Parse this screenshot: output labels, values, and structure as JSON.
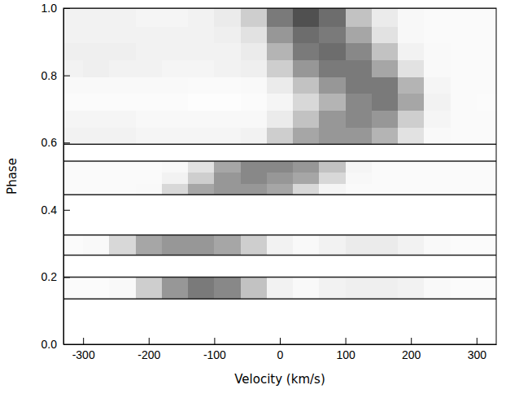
{
  "chart_data": {
    "type": "heatmap",
    "x_label": "Velocity (km/s)",
    "y_label": "Phase",
    "xlim": [
      -330,
      330
    ],
    "ylim": [
      0,
      1
    ],
    "xticks": [
      -300,
      -200,
      -100,
      0,
      100,
      200,
      300
    ],
    "yticks": [
      {
        "value": 0,
        "label": "0.0"
      },
      0.2,
      0.4,
      0.6,
      0.8,
      {
        "value": 1,
        "label": "1.0"
      }
    ],
    "zlim": [
      0,
      1
    ],
    "x_bins": [
      -340,
      -300,
      -260,
      -220,
      -180,
      -140,
      -100,
      -60,
      -20,
      20,
      60,
      100,
      140,
      180,
      220,
      260,
      300,
      340
    ],
    "y_bins": [
      [
        0.135,
        0.2
      ],
      [
        0.265,
        0.325
      ],
      [
        0.445,
        0.478
      ],
      [
        0.478,
        0.512
      ],
      [
        0.512,
        0.545
      ],
      [
        0.595,
        0.645
      ],
      [
        0.645,
        0.695
      ],
      [
        0.695,
        0.745
      ],
      [
        0.745,
        0.795
      ],
      [
        0.795,
        0.845
      ],
      [
        0.845,
        0.895
      ],
      [
        0.895,
        0.945
      ],
      [
        0.945,
        1.0
      ]
    ],
    "cells": [
      [
        0.03,
        0.03,
        0.05,
        0.3,
        0.5,
        0.6,
        0.55,
        0.35,
        0.1,
        0.05,
        0.1,
        0.12,
        0.12,
        0.1,
        0.05,
        0.03,
        0.03
      ],
      [
        0.03,
        0.05,
        0.25,
        0.45,
        0.5,
        0.5,
        0.45,
        0.3,
        0.1,
        0.05,
        0.1,
        0.15,
        0.15,
        0.1,
        0.05,
        0.03,
        0.03
      ],
      [
        0.04,
        0.04,
        0.04,
        0.05,
        0.25,
        0.45,
        0.5,
        0.5,
        0.45,
        0.25,
        0.08,
        0.04,
        0.04,
        0.04,
        0.04,
        0.04,
        0.04
      ],
      [
        0.04,
        0.04,
        0.04,
        0.04,
        0.1,
        0.3,
        0.5,
        0.55,
        0.5,
        0.45,
        0.25,
        0.06,
        0.04,
        0.04,
        0.04,
        0.04,
        0.04
      ],
      [
        0.04,
        0.04,
        0.04,
        0.04,
        0.06,
        0.2,
        0.45,
        0.55,
        0.55,
        0.5,
        0.35,
        0.08,
        0.04,
        0.04,
        0.04,
        0.04,
        0.04
      ],
      [
        0.1,
        0.1,
        0.1,
        0.08,
        0.08,
        0.08,
        0.08,
        0.1,
        0.3,
        0.45,
        0.5,
        0.5,
        0.4,
        0.2,
        0.05,
        0.04,
        0.04
      ],
      [
        0.08,
        0.08,
        0.08,
        0.06,
        0.06,
        0.06,
        0.06,
        0.06,
        0.15,
        0.35,
        0.5,
        0.55,
        0.5,
        0.3,
        0.08,
        0.04,
        0.04
      ],
      [
        0.03,
        0.03,
        0.03,
        0.03,
        0.03,
        0.02,
        0.02,
        0.03,
        0.08,
        0.25,
        0.4,
        0.55,
        0.6,
        0.45,
        0.1,
        0.04,
        0.03
      ],
      [
        0.05,
        0.05,
        0.05,
        0.05,
        0.05,
        0.04,
        0.04,
        0.05,
        0.15,
        0.35,
        0.5,
        0.6,
        0.6,
        0.4,
        0.08,
        0.04,
        0.04
      ],
      [
        0.1,
        0.12,
        0.1,
        0.1,
        0.08,
        0.08,
        0.1,
        0.12,
        0.3,
        0.5,
        0.6,
        0.6,
        0.45,
        0.2,
        0.05,
        0.04,
        0.04
      ],
      [
        0.12,
        0.12,
        0.12,
        0.1,
        0.1,
        0.1,
        0.1,
        0.15,
        0.4,
        0.6,
        0.65,
        0.55,
        0.35,
        0.1,
        0.05,
        0.04,
        0.04
      ],
      [
        0.1,
        0.1,
        0.1,
        0.1,
        0.1,
        0.1,
        0.12,
        0.2,
        0.5,
        0.65,
        0.6,
        0.45,
        0.2,
        0.06,
        0.04,
        0.04,
        0.04
      ],
      [
        0.1,
        0.1,
        0.1,
        0.08,
        0.08,
        0.1,
        0.15,
        0.3,
        0.6,
        0.75,
        0.65,
        0.35,
        0.15,
        0.06,
        0.04,
        0.04,
        0.04
      ]
    ]
  }
}
